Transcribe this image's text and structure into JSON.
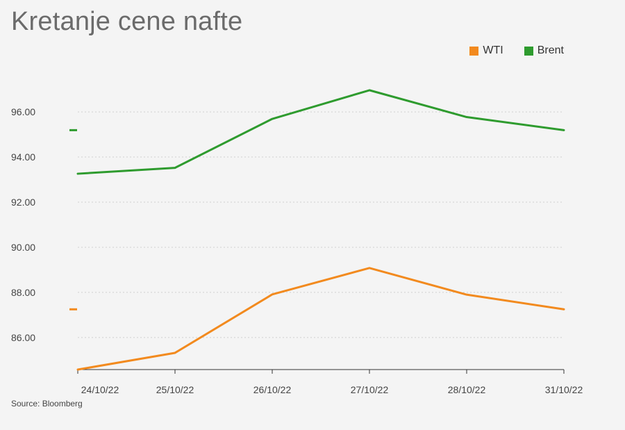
{
  "title": "Kretanje cene nafte",
  "source": "Source: Bloomberg",
  "legend": [
    {
      "name": "WTI",
      "color": "#f28a1e"
    },
    {
      "name": "Brent",
      "color": "#2e9b2e"
    }
  ],
  "chart_data": {
    "type": "line",
    "title": "Kretanje cene nafte",
    "categories": [
      "24/10/22",
      "25/10/22",
      "26/10/22",
      "27/10/22",
      "28/10/22",
      "31/10/22"
    ],
    "yticks": [
      "96.00",
      "94.00",
      "92.00",
      "90.00",
      "88.00",
      "86.00"
    ],
    "ylim": [
      84.58,
      97.88
    ],
    "grid": true,
    "legend_position": "top-right",
    "series": [
      {
        "name": "Brent",
        "color": "#2e9b2e",
        "values": [
          93.26,
          93.52,
          95.69,
          96.96,
          95.77,
          95.19
        ]
      },
      {
        "name": "WTI",
        "color": "#f28a1e",
        "values": [
          84.58,
          85.32,
          87.91,
          89.08,
          87.9,
          87.25
        ]
      }
    ],
    "markers": [
      {
        "series": "Brent",
        "value": 95.19
      },
      {
        "series": "WTI",
        "value": 87.25
      }
    ]
  }
}
